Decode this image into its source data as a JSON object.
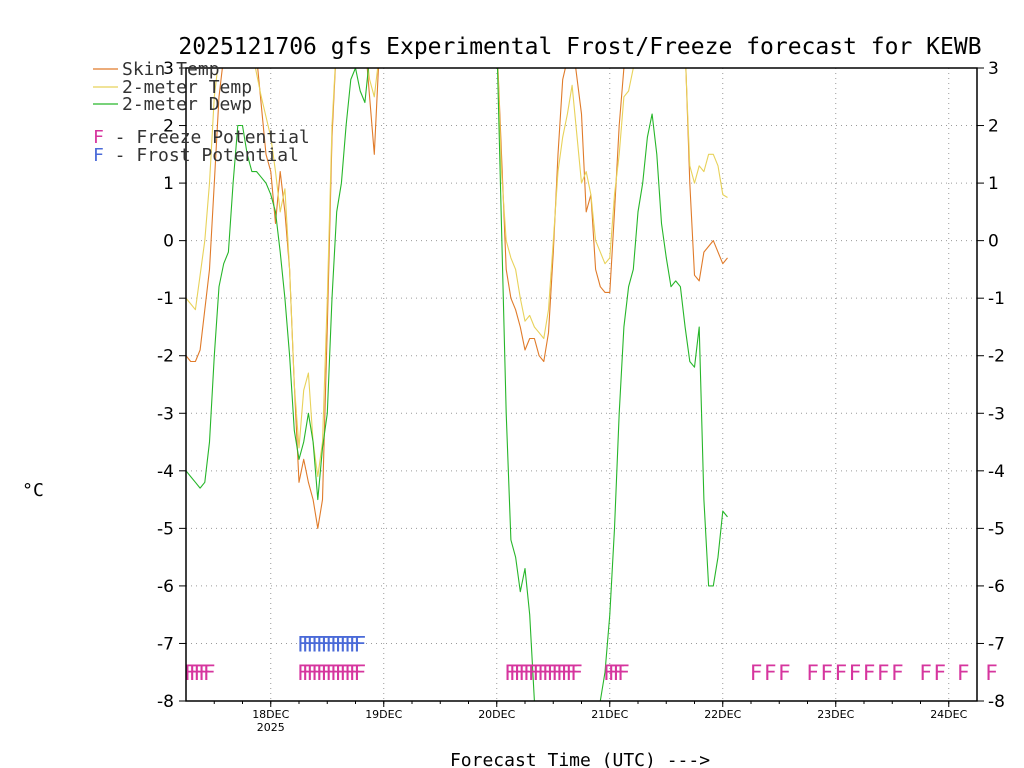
{
  "chart_data": {
    "type": "line",
    "title": "2025121706 gfs Experimental Frost/Freeze forecast for KEWB",
    "xlabel": "Forecast Time (UTC) --->",
    "ylabel": "°C",
    "ylim": [
      -8,
      3
    ],
    "x_unit": "hours since 2025-12-17 06Z",
    "xlim": [
      0,
      168
    ],
    "y_ticks": [
      "-8",
      "-7",
      "-6",
      "-5",
      "-4",
      "-3",
      "-2",
      "-1",
      "0",
      "1",
      "2",
      "3"
    ],
    "x_ticks": [
      {
        "label": "18DEC",
        "sub": "2025",
        "x": 18
      },
      {
        "label": "19DEC",
        "sub": "",
        "x": 42
      },
      {
        "label": "20DEC",
        "sub": "",
        "x": 66
      },
      {
        "label": "21DEC",
        "sub": "",
        "x": 90
      },
      {
        "label": "22DEC",
        "sub": "",
        "x": 114
      },
      {
        "label": "23DEC",
        "sub": "",
        "x": 138
      },
      {
        "label": "24DEC",
        "sub": "",
        "x": 162
      }
    ],
    "grid": true,
    "series": [
      {
        "name": "Skin Temp",
        "color": "#e07b2a",
        "points": [
          [
            0,
            -2
          ],
          [
            1,
            -2.1
          ],
          [
            2,
            -2.1
          ],
          [
            3,
            -1.9
          ],
          [
            4,
            -1.2
          ],
          [
            5,
            -0.5
          ],
          [
            6,
            1
          ],
          [
            7,
            2.5
          ],
          [
            8,
            3.2
          ],
          [
            9,
            3.5
          ],
          [
            12,
            3.6
          ],
          [
            15,
            3.2
          ],
          [
            17,
            1.5
          ],
          [
            18,
            1.2
          ],
          [
            19,
            0.3
          ],
          [
            20,
            1.2
          ],
          [
            21,
            0.5
          ],
          [
            22,
            -0.5
          ],
          [
            23,
            -2.5
          ],
          [
            24,
            -4.2
          ],
          [
            25,
            -3.8
          ],
          [
            26,
            -4.2
          ],
          [
            27,
            -4.5
          ],
          [
            28,
            -5
          ],
          [
            29,
            -4.5
          ],
          [
            30,
            -1.5
          ],
          [
            31,
            1.8
          ],
          [
            32,
            3.5
          ],
          [
            38,
            3.5
          ],
          [
            39,
            2.5
          ],
          [
            40,
            1.5
          ],
          [
            41,
            3.2
          ],
          [
            43,
            3.5
          ],
          [
            66,
            3.5
          ],
          [
            67,
            1.5
          ],
          [
            68,
            -0.5
          ],
          [
            69,
            -1
          ],
          [
            70,
            -1.2
          ],
          [
            71,
            -1.5
          ],
          [
            72,
            -1.9
          ],
          [
            73,
            -1.7
          ],
          [
            74,
            -1.7
          ],
          [
            75,
            -2
          ],
          [
            76,
            -2.1
          ],
          [
            77,
            -1.6
          ],
          [
            78,
            -0.2
          ],
          [
            79,
            1.5
          ],
          [
            80,
            2.8
          ],
          [
            82,
            3.5
          ],
          [
            84,
            2.2
          ],
          [
            85,
            0.5
          ],
          [
            86,
            0.8
          ],
          [
            87,
            -0.5
          ],
          [
            88,
            -0.8
          ],
          [
            89,
            -0.9
          ],
          [
            90,
            -0.9
          ],
          [
            91,
            0.5
          ],
          [
            92,
            2
          ],
          [
            93,
            3
          ],
          [
            95,
            3.6
          ],
          [
            104,
            3.6
          ],
          [
            106,
            3.4
          ],
          [
            107,
            1
          ],
          [
            108,
            -0.6
          ],
          [
            109,
            -0.7
          ],
          [
            110,
            -0.2
          ],
          [
            111,
            -0.1
          ],
          [
            112,
            0
          ],
          [
            113,
            -0.2
          ],
          [
            114,
            -0.4
          ],
          [
            115,
            -0.3
          ]
        ]
      },
      {
        "name": "2-meter Temp",
        "color": "#e8d25a",
        "points": [
          [
            0,
            -1
          ],
          [
            1,
            -1.1
          ],
          [
            2,
            -1.2
          ],
          [
            3,
            -0.6
          ],
          [
            4,
            0
          ],
          [
            5,
            1
          ],
          [
            6,
            2.5
          ],
          [
            7,
            3.2
          ],
          [
            8,
            3.6
          ],
          [
            12,
            3.6
          ],
          [
            14,
            3.3
          ],
          [
            16,
            2.5
          ],
          [
            18,
            1.8
          ],
          [
            19,
            1.2
          ],
          [
            20,
            0.5
          ],
          [
            21,
            0.9
          ],
          [
            22,
            -0.5
          ],
          [
            23,
            -2.5
          ],
          [
            24,
            -3.6
          ],
          [
            25,
            -2.6
          ],
          [
            26,
            -2.3
          ],
          [
            27,
            -3.5
          ],
          [
            28,
            -4.1
          ],
          [
            29,
            -3.5
          ],
          [
            30,
            -1
          ],
          [
            31,
            2
          ],
          [
            32,
            3.5
          ],
          [
            38,
            3.5
          ],
          [
            39,
            2.8
          ],
          [
            40,
            2.5
          ],
          [
            41,
            3.2
          ],
          [
            43,
            3.5
          ],
          [
            66,
            3.5
          ],
          [
            67,
            1.2
          ],
          [
            68,
            0
          ],
          [
            69,
            -0.3
          ],
          [
            70,
            -0.5
          ],
          [
            71,
            -1
          ],
          [
            72,
            -1.4
          ],
          [
            73,
            -1.3
          ],
          [
            74,
            -1.5
          ],
          [
            75,
            -1.6
          ],
          [
            76,
            -1.7
          ],
          [
            77,
            -1.2
          ],
          [
            78,
            0
          ],
          [
            79,
            1.2
          ],
          [
            80,
            1.8
          ],
          [
            81,
            2.2
          ],
          [
            82,
            2.7
          ],
          [
            84,
            1
          ],
          [
            85,
            1.2
          ],
          [
            86,
            0.8
          ],
          [
            87,
            0
          ],
          [
            88,
            -0.2
          ],
          [
            89,
            -0.4
          ],
          [
            90,
            -0.3
          ],
          [
            91,
            0.8
          ],
          [
            92,
            1.5
          ],
          [
            93,
            2.5
          ],
          [
            94,
            2.6
          ],
          [
            95,
            3
          ],
          [
            104,
            3.5
          ],
          [
            106,
            3.3
          ],
          [
            107,
            1.3
          ],
          [
            108,
            1
          ],
          [
            109,
            1.3
          ],
          [
            110,
            1.2
          ],
          [
            111,
            1.5
          ],
          [
            112,
            1.5
          ],
          [
            113,
            1.3
          ],
          [
            114,
            0.8
          ],
          [
            115,
            0.75
          ]
        ]
      },
      {
        "name": "2-meter Dewp",
        "color": "#27b62a",
        "points": [
          [
            0,
            -4
          ],
          [
            1,
            -4.1
          ],
          [
            2,
            -4.2
          ],
          [
            3,
            -4.3
          ],
          [
            4,
            -4.2
          ],
          [
            5,
            -3.5
          ],
          [
            6,
            -2
          ],
          [
            7,
            -0.8
          ],
          [
            8,
            -0.4
          ],
          [
            9,
            -0.2
          ],
          [
            10,
            1
          ],
          [
            11,
            2
          ],
          [
            12,
            2
          ],
          [
            13,
            1.5
          ],
          [
            14,
            1.2
          ],
          [
            15,
            1.2
          ],
          [
            16,
            1.1
          ],
          [
            17,
            1
          ],
          [
            18,
            0.8
          ],
          [
            19,
            0.5
          ],
          [
            20,
            -0.2
          ],
          [
            21,
            -1
          ],
          [
            22,
            -2
          ],
          [
            23,
            -3.3
          ],
          [
            24,
            -3.8
          ],
          [
            25,
            -3.5
          ],
          [
            26,
            -3
          ],
          [
            27,
            -3.5
          ],
          [
            28,
            -4.5
          ],
          [
            29,
            -3.6
          ],
          [
            30,
            -3
          ],
          [
            31,
            -1
          ],
          [
            32,
            0.5
          ],
          [
            33,
            1
          ],
          [
            34,
            2
          ],
          [
            35,
            2.8
          ],
          [
            36,
            3
          ],
          [
            37,
            2.6
          ],
          [
            38,
            2.4
          ],
          [
            39,
            3.2
          ],
          [
            40,
            3.5
          ],
          [
            66,
            3.5
          ],
          [
            68,
            -3
          ],
          [
            69,
            -5.2
          ],
          [
            70,
            -5.5
          ],
          [
            71,
            -6.1
          ],
          [
            72,
            -5.7
          ],
          [
            73,
            -6.5
          ],
          [
            74,
            -8
          ],
          [
            75,
            -8.3
          ],
          [
            76,
            -8
          ],
          [
            77,
            -8.3
          ],
          [
            78,
            -8.3
          ],
          [
            79,
            -8.3
          ],
          [
            80,
            -8.3
          ],
          [
            85,
            -8.3
          ],
          [
            86,
            -8.3
          ],
          [
            87,
            -8.2
          ],
          [
            88,
            -8
          ],
          [
            89,
            -7.5
          ],
          [
            90,
            -6.5
          ],
          [
            91,
            -5
          ],
          [
            92,
            -3
          ],
          [
            93,
            -1.5
          ],
          [
            94,
            -0.8
          ],
          [
            95,
            -0.5
          ],
          [
            96,
            0.5
          ],
          [
            97,
            1
          ],
          [
            98,
            1.8
          ],
          [
            99,
            2.2
          ],
          [
            100,
            1.5
          ],
          [
            101,
            0.3
          ],
          [
            102,
            -0.3
          ],
          [
            103,
            -0.8
          ],
          [
            104,
            -0.7
          ],
          [
            105,
            -0.8
          ],
          [
            106,
            -1.5
          ],
          [
            107,
            -2.1
          ],
          [
            108,
            -2.2
          ],
          [
            109,
            -1.5
          ],
          [
            110,
            -4.5
          ],
          [
            111,
            -6
          ],
          [
            112,
            -6
          ],
          [
            113,
            -5.5
          ],
          [
            114,
            -4.7
          ],
          [
            115,
            -4.8
          ]
        ]
      }
    ],
    "potential_markers": [
      {
        "name": "Freeze Potential",
        "row": -7.5,
        "color": "#d6359e",
        "x": [
          0,
          1,
          2,
          3,
          4,
          24,
          25,
          26,
          27,
          28,
          29,
          30,
          31,
          32,
          33,
          34,
          35,
          36,
          68,
          69,
          70,
          71,
          72,
          73,
          74,
          75,
          76,
          77,
          78,
          79,
          80,
          81,
          82,
          89,
          90,
          91,
          92
        ]
      },
      {
        "name": "Frost Potential",
        "row": -7.0,
        "color": "#4a6ad8",
        "x": [
          24,
          25,
          26,
          27,
          28,
          29,
          30,
          31,
          32,
          33,
          34,
          35,
          36
        ]
      }
    ],
    "extended_freeze_markers": {
      "color": "#d6359e",
      "row": -7.5,
      "x": [
        121,
        124,
        127,
        133,
        136,
        139,
        142,
        145,
        148,
        151,
        157,
        160,
        165,
        171
      ]
    }
  },
  "legend": {
    "skin_temp": "Skin Temp",
    "t2m": "2-meter Temp",
    "d2m": "2-meter Dewp",
    "freeze_letter": "F",
    "freeze_text": " - Freeze Potential",
    "frost_letter": "F",
    "frost_text": " - Frost Potential"
  },
  "colors": {
    "skin": "#e07b2a",
    "t2m": "#e8d25a",
    "dewp": "#27b62a",
    "freeze": "#d6359e",
    "frost": "#4a6ad8",
    "grid": "#9a9a9a"
  }
}
